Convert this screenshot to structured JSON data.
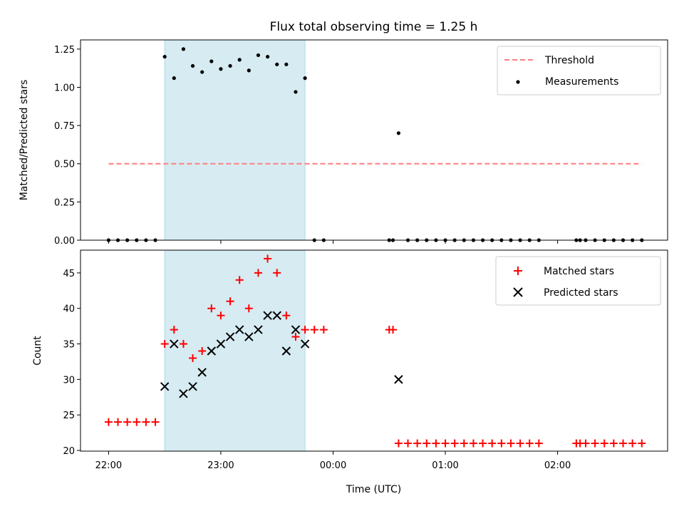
{
  "chart_data": [
    {
      "type": "scatter",
      "title": "Flux total observing time = 1.25 h",
      "ylabel": "Matched/Predicted stars",
      "xlabel": "",
      "x_unit": "hours since 22:00 UTC",
      "xlim": [
        -0.25,
        4.98
      ],
      "ylim": [
        0,
        1.31
      ],
      "yticks": [
        "0.00",
        "0.25",
        "0.50",
        "0.75",
        "1.00",
        "1.25"
      ],
      "shaded_interval": [
        "22:30",
        "23:45"
      ],
      "shade_color": "#add8e6",
      "threshold": {
        "name": "Threshold",
        "value": 0.5,
        "x_range": [
          "22:00",
          "02:45"
        ],
        "color": "#ff7f7f"
      },
      "series": [
        {
          "name": "Measurements",
          "color": "#000000",
          "x": [
            "22:00",
            "22:05",
            "22:10",
            "22:15",
            "22:20",
            "22:25",
            "22:30",
            "22:35",
            "22:40",
            "22:45",
            "22:50",
            "22:55",
            "23:00",
            "23:05",
            "23:10",
            "23:15",
            "23:20",
            "23:25",
            "23:30",
            "23:35",
            "23:40",
            "23:45",
            "23:50",
            "23:55",
            "00:30",
            "00:32",
            "00:35",
            "00:40",
            "00:45",
            "00:50",
            "00:55",
            "01:00",
            "01:05",
            "01:10",
            "01:15",
            "01:20",
            "01:25",
            "01:30",
            "01:35",
            "01:40",
            "01:45",
            "01:50",
            "02:10",
            "02:12",
            "02:15",
            "02:20",
            "02:25",
            "02:30",
            "02:35",
            "02:40",
            "02:45"
          ],
          "y": [
            0,
            0,
            0,
            0,
            0,
            0,
            1.2,
            1.06,
            1.25,
            1.14,
            1.1,
            1.17,
            1.12,
            1.14,
            1.18,
            1.11,
            1.21,
            1.2,
            1.15,
            1.15,
            0.97,
            1.06,
            0,
            0,
            0,
            0,
            0.7,
            0,
            0,
            0,
            0,
            0,
            0,
            0,
            0,
            0,
            0,
            0,
            0,
            0,
            0,
            0,
            0,
            0,
            0,
            0,
            0,
            0,
            0,
            0,
            0
          ]
        }
      ],
      "legend_position": "top-right"
    },
    {
      "type": "scatter",
      "title": "",
      "ylabel": "Count",
      "xlabel": "Time (UTC)",
      "x_unit": "hours since 22:00 UTC",
      "xlim": [
        -0.25,
        4.98
      ],
      "ylim": [
        19.9,
        48.2
      ],
      "xticks": [
        "22:00",
        "23:00",
        "00:00",
        "01:00",
        "02:00"
      ],
      "yticks": [
        "20",
        "25",
        "30",
        "35",
        "40",
        "45"
      ],
      "shaded_interval": [
        "22:30",
        "23:45"
      ],
      "shade_color": "#add8e6",
      "series": [
        {
          "name": "Matched stars",
          "marker": "plus",
          "color": "#ff0000",
          "x": [
            "22:00",
            "22:05",
            "22:10",
            "22:15",
            "22:20",
            "22:25",
            "22:30",
            "22:35",
            "22:40",
            "22:45",
            "22:50",
            "22:55",
            "23:00",
            "23:05",
            "23:10",
            "23:15",
            "23:20",
            "23:25",
            "23:30",
            "23:35",
            "23:40",
            "23:45",
            "23:50",
            "23:55",
            "00:30",
            "00:32",
            "00:35",
            "00:40",
            "00:45",
            "00:50",
            "00:55",
            "01:00",
            "01:05",
            "01:10",
            "01:15",
            "01:20",
            "01:25",
            "01:30",
            "01:35",
            "01:40",
            "01:45",
            "01:50",
            "02:10",
            "02:12",
            "02:15",
            "02:20",
            "02:25",
            "02:30",
            "02:35",
            "02:40",
            "02:45"
          ],
          "y": [
            24,
            24,
            24,
            24,
            24,
            24,
            35,
            37,
            35,
            33,
            34,
            40,
            39,
            41,
            44,
            40,
            45,
            47,
            45,
            39,
            36,
            37,
            37,
            37,
            37,
            37,
            21,
            21,
            21,
            21,
            21,
            21,
            21,
            21,
            21,
            21,
            21,
            21,
            21,
            21,
            21,
            21,
            21,
            21,
            21,
            21,
            21,
            21,
            21,
            21,
            21
          ]
        },
        {
          "name": "Predicted stars",
          "marker": "x",
          "color": "#000000",
          "x": [
            "22:30",
            "22:35",
            "22:40",
            "22:45",
            "22:50",
            "22:55",
            "23:00",
            "23:05",
            "23:10",
            "23:15",
            "23:20",
            "23:25",
            "23:30",
            "23:35",
            "23:40",
            "23:45",
            "00:35"
          ],
          "y": [
            29,
            35,
            28,
            29,
            31,
            34,
            35,
            36,
            37,
            36,
            37,
            39,
            39,
            34,
            37,
            35,
            30
          ]
        }
      ],
      "legend_position": "top-right"
    }
  ]
}
